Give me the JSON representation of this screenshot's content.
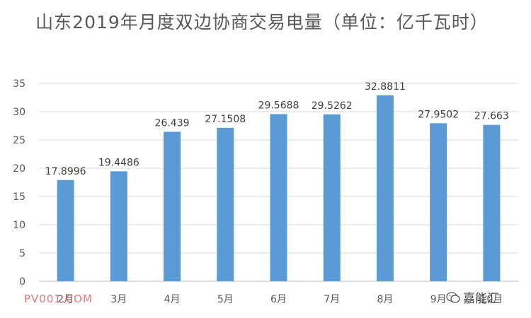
{
  "chart_data": {
    "type": "bar",
    "title": "山东2019年月度双边协商交易电量（单位：亿千瓦时）",
    "categories": [
      "2月",
      "3月",
      "4月",
      "5月",
      "6月",
      "7月",
      "8月",
      "9月",
      "10月"
    ],
    "values": [
      17.8996,
      19.4486,
      26.439,
      27.1508,
      29.5688,
      29.5262,
      32.8811,
      27.9502,
      27.663
    ],
    "data_labels": [
      "17.8996",
      "19.4486",
      "26.439",
      "27.1508",
      "29.5688",
      "29.5262",
      "32.8811",
      "27.9502",
      "27.663"
    ],
    "y_ticks": [
      "0",
      "5",
      "10",
      "15",
      "20",
      "25",
      "30",
      "35"
    ],
    "ylim": [
      0,
      35
    ],
    "grid": true,
    "legend": false,
    "bar_color": "#5b9bd5"
  },
  "watermarks": {
    "left": "PV001.COM",
    "right": "嘉能汇",
    "right_icon": "wechat-icon"
  }
}
